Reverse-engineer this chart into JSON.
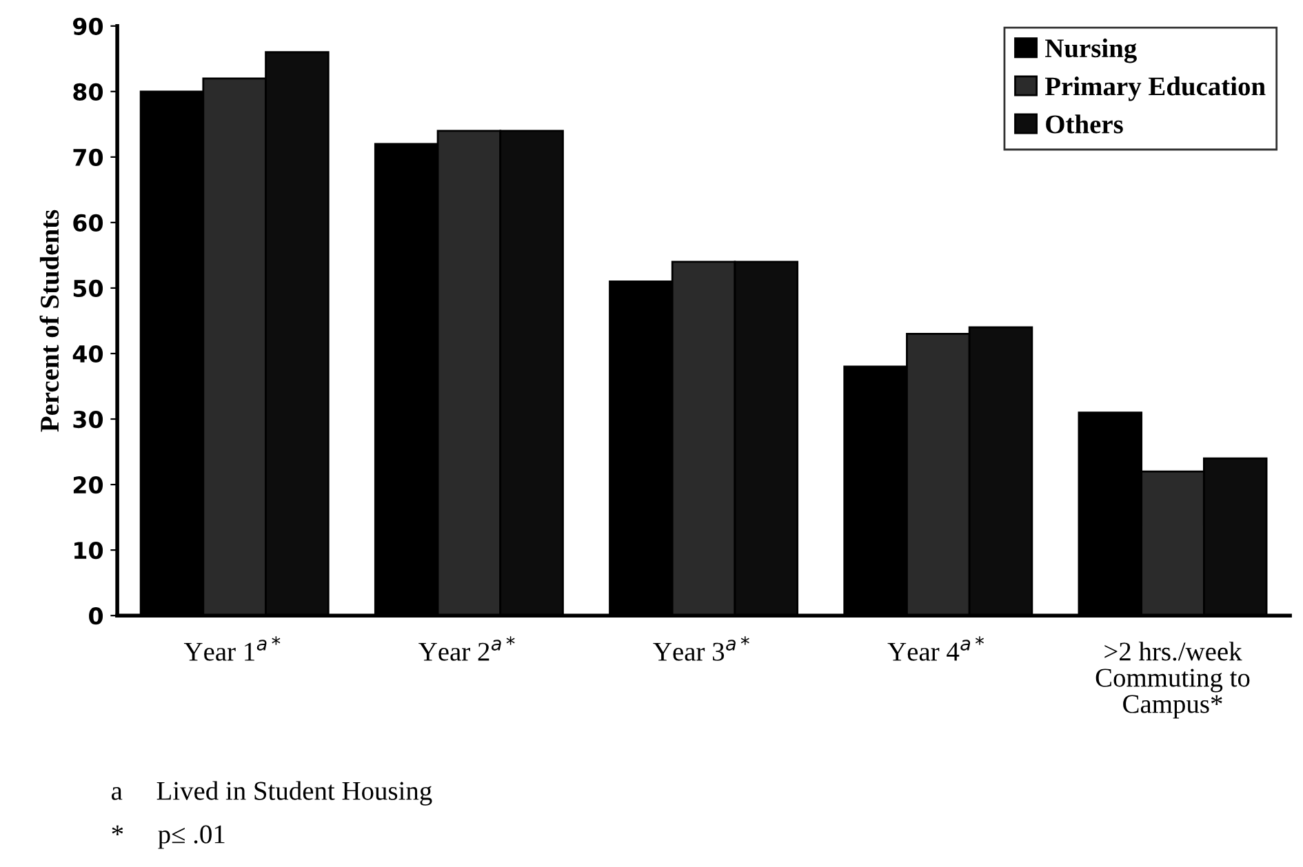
{
  "chart_data": {
    "type": "bar",
    "ylabel": "Percent of Students",
    "categories": [
      "Year 1$^{a*}$",
      "Year 2$^{a*}$",
      "Year 3$^{a*}$",
      "Year 4$^{a*}$",
      ">2 hrs./week\nCommuting to\nCampus*"
    ],
    "series": [
      {
        "name": "Nursing",
        "color": "#000000",
        "values": [
          80,
          72,
          51,
          38,
          31
        ]
      },
      {
        "name": "Primary Education",
        "color": "#2b2b2b",
        "values": [
          82,
          74,
          54,
          43,
          22
        ]
      },
      {
        "name": "Others",
        "color": "#0d0d0d",
        "values": [
          86,
          74,
          54,
          44,
          24
        ]
      }
    ],
    "ylim": [
      0,
      90
    ],
    "yticks": [
      0,
      10,
      20,
      30,
      40,
      50,
      60,
      70,
      80,
      90
    ],
    "legend": "top right",
    "grid": false,
    "annotations": [
      "a     Lived in Student Housing",
      "*     p≤ .01"
    ]
  }
}
